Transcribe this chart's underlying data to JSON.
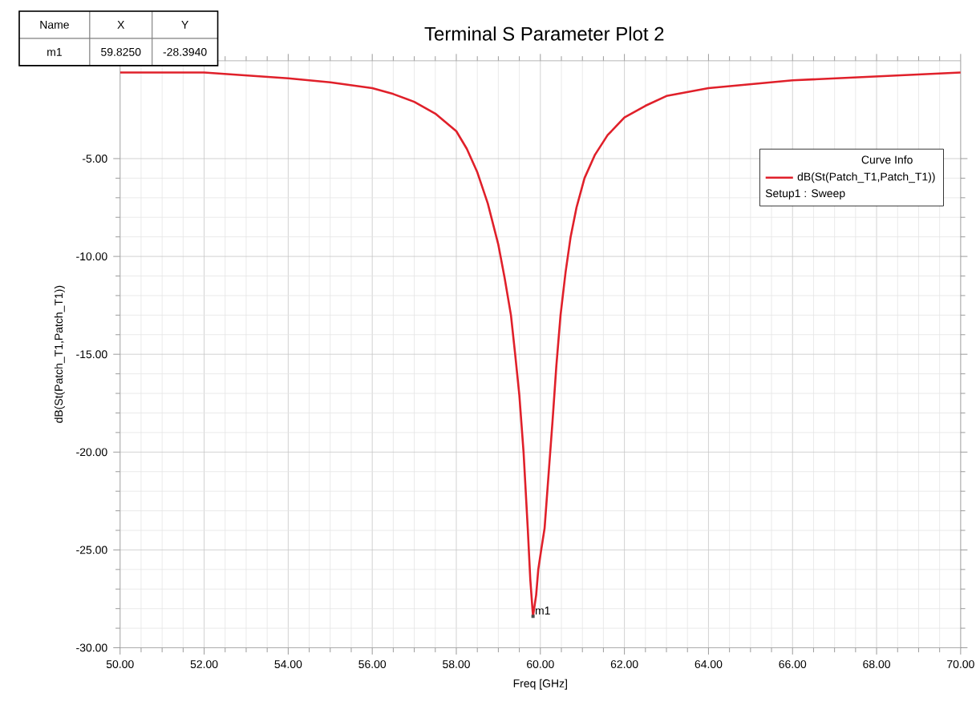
{
  "chart_data": {
    "type": "line",
    "title": "Terminal S Parameter Plot 2",
    "xlabel": "Freq [GHz]",
    "ylabel": "dB(St(Patch_T1,Patch_T1))",
    "legend_title": "Curve Info",
    "legend": "top right",
    "grid": true,
    "xlim": [
      50,
      70
    ],
    "ylim": [
      -30,
      0
    ],
    "xticks": [
      {
        "value": 50,
        "label": "50.00"
      },
      {
        "value": 52,
        "label": "52.00"
      },
      {
        "value": 54,
        "label": "54.00"
      },
      {
        "value": 56,
        "label": "56.00"
      },
      {
        "value": 58,
        "label": "58.00"
      },
      {
        "value": 60,
        "label": "60.00"
      },
      {
        "value": 62,
        "label": "62.00"
      },
      {
        "value": 64,
        "label": "64.00"
      },
      {
        "value": 66,
        "label": "66.00"
      },
      {
        "value": 68,
        "label": "68.00"
      },
      {
        "value": 70,
        "label": "70.00"
      }
    ],
    "yticks": [
      {
        "value": -30,
        "label": "-30.00"
      },
      {
        "value": -25,
        "label": "-25.00"
      },
      {
        "value": -20,
        "label": "-20.00"
      },
      {
        "value": -15,
        "label": "-15.00"
      },
      {
        "value": -10,
        "label": "-10.00"
      },
      {
        "value": -5,
        "label": "-5.00"
      }
    ],
    "series": [
      {
        "name": "dB(St(Patch_T1,Patch_T1))",
        "color": "#e0202a",
        "x": [
          50,
          52,
          54,
          55,
          56,
          56.5,
          57,
          57.5,
          58,
          58.25,
          58.5,
          58.75,
          59,
          59.15,
          59.3,
          59.4,
          59.5,
          59.6,
          59.7,
          59.76,
          59.825,
          59.9,
          59.95,
          60.02,
          60.1,
          60.2,
          60.29,
          60.38,
          60.48,
          60.6,
          60.72,
          60.86,
          61.05,
          61.3,
          61.6,
          62,
          62.5,
          63,
          64,
          65,
          66,
          67,
          68,
          69,
          70
        ],
        "values": [
          -0.6,
          -0.6,
          -0.9,
          -1.1,
          -1.4,
          -1.7,
          -2.1,
          -2.7,
          -3.6,
          -4.5,
          -5.7,
          -7.3,
          -9.4,
          -11.1,
          -13.0,
          -15.0,
          -17.1,
          -20.0,
          -23.9,
          -26.5,
          -28.394,
          -27.3,
          -26.0,
          -25.0,
          -23.9,
          -21.0,
          -18.4,
          -15.6,
          -13.0,
          -10.8,
          -9.0,
          -7.5,
          -6.0,
          -4.8,
          -3.8,
          -2.9,
          -2.3,
          -1.8,
          -1.4,
          -1.2,
          -1.0,
          -0.9,
          -0.8,
          -0.7,
          -0.6
        ]
      }
    ],
    "annotations": [
      "Name",
      "X",
      "Y",
      "m1",
      "59.8250",
      "-28.3940",
      {
        "text": "m1",
        "x": 59.825,
        "y": -28.394
      },
      "Setup1 : Sweep"
    ]
  }
}
